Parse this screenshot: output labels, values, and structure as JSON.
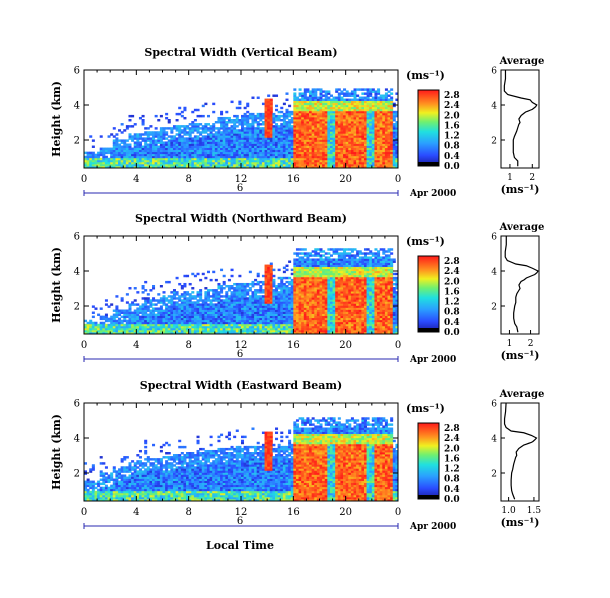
{
  "figure": {
    "x_axis_label": "Local Time",
    "date_label": "Apr 2000",
    "colorbar_unit": "(ms⁻¹)",
    "average_title": "Average",
    "average_xlabel": "(ms⁻¹)"
  },
  "chart_data": [
    {
      "type": "heatmap",
      "title": "Spectral Width (Vertical Beam)",
      "ylabel": "Height (km)",
      "xlabel": "Local Time",
      "x_ticks": [
        "0",
        "4",
        "8",
        "12",
        "16",
        "20",
        "0"
      ],
      "y_ticks": [
        "2",
        "4",
        "6"
      ],
      "day_marker": "6",
      "xlim": [
        0,
        24
      ],
      "ylim": [
        0.4,
        6.0
      ],
      "colorbar": {
        "ticks": [
          "0.0",
          "0.4",
          "0.8",
          "1.2",
          "1.6",
          "2.0",
          "2.4",
          "2.8"
        ],
        "range": [
          0,
          3.0
        ]
      },
      "features": {
        "low_layer_top_km": [
          1.3,
          1.6,
          2.0,
          2.4,
          2.5,
          2.7,
          2.9,
          3.0,
          3.1,
          3.3,
          3.4,
          3.5,
          3.6,
          3.7
        ],
        "precip_start_h": 16.0,
        "precip_end_h": 23.5,
        "precip_top_km": 5.0,
        "melting_layer_km": 4.0
      }
    },
    {
      "type": "line",
      "title": "Average",
      "xlabel": "(ms⁻¹)",
      "x_ticks": [
        "1",
        "2"
      ],
      "y_ticks": [
        "2",
        "4",
        "6"
      ],
      "xlim": [
        0.6,
        2.3
      ],
      "ylim": [
        0.4,
        6.0
      ],
      "x": [
        1.35,
        1.35,
        1.2,
        1.15,
        1.15,
        1.15,
        1.2,
        1.3,
        1.35,
        1.4,
        1.45,
        1.4,
        1.5,
        1.6,
        1.7,
        1.8,
        1.9,
        2.0,
        2.05,
        2.15,
        2.2,
        2.0,
        1.9,
        1.5,
        0.9,
        0.75,
        0.75,
        0.8,
        0.8
      ],
      "y": [
        0.5,
        0.8,
        1.0,
        1.3,
        1.6,
        2.0,
        2.2,
        2.5,
        2.7,
        2.9,
        3.0,
        3.2,
        3.4,
        3.5,
        3.6,
        3.65,
        3.7,
        3.75,
        3.8,
        3.9,
        4.0,
        4.15,
        4.3,
        4.4,
        4.6,
        4.8,
        5.1,
        5.5,
        6.0
      ]
    },
    {
      "type": "heatmap",
      "title": "Spectral Width (Northward Beam)",
      "ylabel": "Height (km)",
      "xlabel": "Local Time",
      "x_ticks": [
        "0",
        "4",
        "8",
        "12",
        "16",
        "20",
        "0"
      ],
      "y_ticks": [
        "2",
        "4",
        "6"
      ],
      "day_marker": "6",
      "xlim": [
        0,
        24
      ],
      "ylim": [
        0.4,
        6.0
      ],
      "colorbar": {
        "ticks": [
          "0.0",
          "0.4",
          "0.8",
          "1.2",
          "1.6",
          "2.0",
          "2.4",
          "2.8"
        ],
        "range": [
          0,
          3.0
        ]
      },
      "features": {
        "low_layer_top_km": [
          1.2,
          1.5,
          1.8,
          2.2,
          2.4,
          2.6,
          2.8,
          2.9,
          3.0,
          3.2,
          3.3,
          3.4,
          3.6,
          3.7
        ],
        "precip_start_h": 16.0,
        "precip_end_h": 23.5,
        "precip_top_km": 5.3,
        "melting_layer_km": 4.0
      }
    },
    {
      "type": "line",
      "title": "Average",
      "xlabel": "(ms⁻¹)",
      "x_ticks": [
        "1",
        "2"
      ],
      "y_ticks": [
        "2",
        "4",
        "6"
      ],
      "xlim": [
        0.6,
        2.4
      ],
      "ylim": [
        0.4,
        6.0
      ],
      "x": [
        1.4,
        1.35,
        1.25,
        1.2,
        1.2,
        1.25,
        1.3,
        1.3,
        1.35,
        1.45,
        1.5,
        1.45,
        1.55,
        1.7,
        1.8,
        1.9,
        2.0,
        2.1,
        2.2,
        2.3,
        2.35,
        2.1,
        1.8,
        1.3,
        0.9,
        0.8,
        0.8,
        0.85,
        0.85
      ],
      "y": [
        0.5,
        0.8,
        1.0,
        1.3,
        1.6,
        2.0,
        2.2,
        2.5,
        2.7,
        2.9,
        3.0,
        3.2,
        3.4,
        3.5,
        3.6,
        3.65,
        3.7,
        3.75,
        3.8,
        3.9,
        4.0,
        4.15,
        4.3,
        4.4,
        4.6,
        4.8,
        5.1,
        5.5,
        6.0
      ]
    },
    {
      "type": "heatmap",
      "title": "Spectral Width (Eastward Beam)",
      "ylabel": "Height (km)",
      "xlabel": "Local Time",
      "x_ticks": [
        "0",
        "4",
        "8",
        "12",
        "16",
        "20",
        "0"
      ],
      "y_ticks": [
        "2",
        "4",
        "6"
      ],
      "day_marker": "6",
      "xlim": [
        0,
        24
      ],
      "ylim": [
        0.4,
        6.0
      ],
      "colorbar": {
        "ticks": [
          "0.0",
          "0.4",
          "0.8",
          "1.2",
          "1.6",
          "2.0",
          "2.4",
          "2.8"
        ],
        "range": [
          0,
          3.0
        ]
      },
      "features": {
        "low_layer_top_km": [
          1.6,
          2.0,
          2.4,
          2.7,
          2.9,
          3.0,
          3.1,
          3.2,
          3.3,
          3.4,
          3.5,
          3.6,
          3.6,
          3.7
        ],
        "precip_start_h": 16.0,
        "precip_end_h": 23.5,
        "precip_top_km": 5.2,
        "melting_layer_km": 4.0
      }
    },
    {
      "type": "line",
      "title": "Average",
      "xlabel": "(ms⁻¹)",
      "x_ticks": [
        "1.0",
        "1.5"
      ],
      "y_ticks": [
        "2",
        "4",
        "6"
      ],
      "xlim": [
        0.85,
        1.6
      ],
      "ylim": [
        0.4,
        6.0
      ],
      "x": [
        1.12,
        1.08,
        1.06,
        1.05,
        1.05,
        1.06,
        1.08,
        1.1,
        1.12,
        1.14,
        1.16,
        1.15,
        1.2,
        1.25,
        1.3,
        1.35,
        1.4,
        1.45,
        1.48,
        1.52,
        1.55,
        1.45,
        1.3,
        1.05,
        0.95,
        0.92,
        0.92,
        0.94,
        0.95
      ],
      "y": [
        0.5,
        0.8,
        1.0,
        1.3,
        1.6,
        2.0,
        2.2,
        2.5,
        2.7,
        2.9,
        3.0,
        3.2,
        3.4,
        3.5,
        3.6,
        3.65,
        3.7,
        3.75,
        3.8,
        3.9,
        4.0,
        4.15,
        4.3,
        4.4,
        4.6,
        4.8,
        5.1,
        5.5,
        6.0
      ]
    }
  ]
}
